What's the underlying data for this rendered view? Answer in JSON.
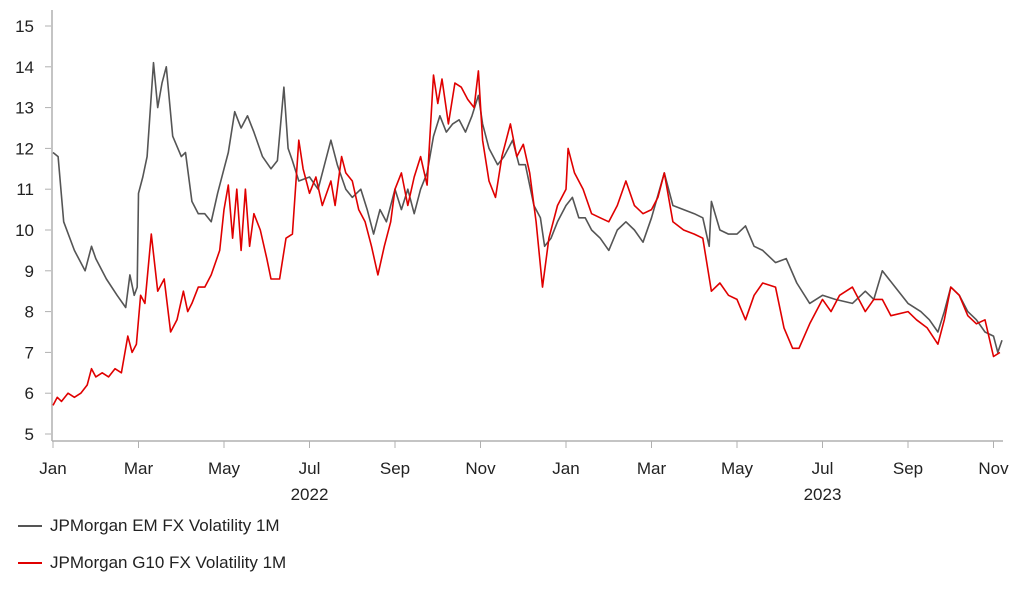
{
  "chart_data": {
    "type": "line",
    "title": "",
    "xlabel": "",
    "ylabel": "",
    "x_unit": "months since Jan 2022",
    "xlim": [
      0,
      22.3
    ],
    "ylim": [
      5,
      15
    ],
    "yticks": [
      5,
      6,
      7,
      8,
      9,
      10,
      11,
      12,
      13,
      14,
      15
    ],
    "xticks": [
      {
        "x": 0,
        "label": "Jan"
      },
      {
        "x": 2,
        "label": "Mar"
      },
      {
        "x": 4,
        "label": "May"
      },
      {
        "x": 6,
        "label": "Jul"
      },
      {
        "x": 8,
        "label": "Sep"
      },
      {
        "x": 10,
        "label": "Nov"
      },
      {
        "x": 12,
        "label": "Jan"
      },
      {
        "x": 14,
        "label": "Mar"
      },
      {
        "x": 16,
        "label": "May"
      },
      {
        "x": 18,
        "label": "Jul"
      },
      {
        "x": 20,
        "label": "Sep"
      },
      {
        "x": 22,
        "label": "Nov"
      }
    ],
    "year_labels": [
      {
        "x": 6,
        "label": "2022"
      },
      {
        "x": 18,
        "label": "2023"
      }
    ],
    "grid": false,
    "legend_position": "bottom-left",
    "series": [
      {
        "name": "JPMorgan EM FX Volatility 1M",
        "color": "#555555",
        "points": [
          [
            0,
            11.9
          ],
          [
            0.12,
            11.8
          ],
          [
            0.25,
            10.2
          ],
          [
            0.5,
            9.5
          ],
          [
            0.75,
            9.0
          ],
          [
            0.9,
            9.6
          ],
          [
            1.0,
            9.3
          ],
          [
            1.25,
            8.8
          ],
          [
            1.5,
            8.4
          ],
          [
            1.7,
            8.1
          ],
          [
            1.8,
            8.9
          ],
          [
            1.9,
            8.4
          ],
          [
            1.97,
            8.6
          ],
          [
            2.0,
            10.9
          ],
          [
            2.1,
            11.3
          ],
          [
            2.2,
            11.8
          ],
          [
            2.35,
            14.1
          ],
          [
            2.45,
            13.0
          ],
          [
            2.55,
            13.6
          ],
          [
            2.65,
            14.0
          ],
          [
            2.8,
            12.3
          ],
          [
            3.0,
            11.8
          ],
          [
            3.1,
            11.9
          ],
          [
            3.25,
            10.7
          ],
          [
            3.4,
            10.4
          ],
          [
            3.55,
            10.4
          ],
          [
            3.7,
            10.2
          ],
          [
            3.85,
            10.9
          ],
          [
            4.0,
            11.5
          ],
          [
            4.1,
            11.9
          ],
          [
            4.25,
            12.9
          ],
          [
            4.4,
            12.5
          ],
          [
            4.55,
            12.8
          ],
          [
            4.7,
            12.4
          ],
          [
            4.9,
            11.8
          ],
          [
            5.1,
            11.5
          ],
          [
            5.25,
            11.7
          ],
          [
            5.4,
            13.5
          ],
          [
            5.5,
            12.0
          ],
          [
            5.6,
            11.7
          ],
          [
            5.75,
            11.2
          ],
          [
            6.0,
            11.3
          ],
          [
            6.2,
            11.0
          ],
          [
            6.35,
            11.6
          ],
          [
            6.5,
            12.2
          ],
          [
            6.65,
            11.6
          ],
          [
            6.85,
            11.0
          ],
          [
            7.0,
            10.8
          ],
          [
            7.2,
            11.0
          ],
          [
            7.35,
            10.5
          ],
          [
            7.5,
            9.9
          ],
          [
            7.65,
            10.5
          ],
          [
            7.8,
            10.2
          ],
          [
            8.0,
            11.0
          ],
          [
            8.15,
            10.5
          ],
          [
            8.3,
            11.0
          ],
          [
            8.45,
            10.4
          ],
          [
            8.6,
            11.0
          ],
          [
            8.75,
            11.4
          ],
          [
            8.9,
            12.3
          ],
          [
            9.05,
            12.8
          ],
          [
            9.2,
            12.4
          ],
          [
            9.35,
            12.6
          ],
          [
            9.5,
            12.7
          ],
          [
            9.65,
            12.4
          ],
          [
            9.8,
            12.8
          ],
          [
            9.95,
            13.3
          ],
          [
            10.05,
            12.6
          ],
          [
            10.2,
            12.0
          ],
          [
            10.4,
            11.6
          ],
          [
            10.55,
            11.8
          ],
          [
            10.75,
            12.2
          ],
          [
            10.9,
            11.6
          ],
          [
            11.05,
            11.6
          ],
          [
            11.25,
            10.6
          ],
          [
            11.4,
            10.3
          ],
          [
            11.5,
            9.6
          ],
          [
            11.65,
            9.8
          ],
          [
            11.8,
            10.2
          ],
          [
            12.0,
            10.6
          ],
          [
            12.15,
            10.8
          ],
          [
            12.3,
            10.3
          ],
          [
            12.45,
            10.3
          ],
          [
            12.6,
            10.0
          ],
          [
            12.8,
            9.8
          ],
          [
            13.0,
            9.5
          ],
          [
            13.2,
            10.0
          ],
          [
            13.4,
            10.2
          ],
          [
            13.6,
            10.0
          ],
          [
            13.8,
            9.7
          ],
          [
            14.0,
            10.3
          ],
          [
            14.3,
            11.4
          ],
          [
            14.5,
            10.6
          ],
          [
            14.75,
            10.5
          ],
          [
            15.0,
            10.4
          ],
          [
            15.2,
            10.3
          ],
          [
            15.35,
            9.6
          ],
          [
            15.4,
            10.7
          ],
          [
            15.6,
            10.0
          ],
          [
            15.8,
            9.9
          ],
          [
            16.0,
            9.9
          ],
          [
            16.2,
            10.1
          ],
          [
            16.4,
            9.6
          ],
          [
            16.6,
            9.5
          ],
          [
            16.9,
            9.2
          ],
          [
            17.15,
            9.3
          ],
          [
            17.4,
            8.7
          ],
          [
            17.7,
            8.2
          ],
          [
            18.0,
            8.4
          ],
          [
            18.3,
            8.3
          ],
          [
            18.7,
            8.2
          ],
          [
            19.0,
            8.5
          ],
          [
            19.2,
            8.3
          ],
          [
            19.4,
            9.0
          ],
          [
            19.7,
            8.6
          ],
          [
            20.0,
            8.2
          ],
          [
            20.3,
            8.0
          ],
          [
            20.5,
            7.8
          ],
          [
            20.7,
            7.5
          ],
          [
            20.85,
            8.0
          ],
          [
            21.0,
            8.6
          ],
          [
            21.2,
            8.4
          ],
          [
            21.4,
            8.0
          ],
          [
            21.6,
            7.8
          ],
          [
            21.8,
            7.5
          ],
          [
            22.0,
            7.4
          ],
          [
            22.1,
            7.0
          ],
          [
            22.2,
            7.3
          ]
        ]
      },
      {
        "name": "JPMorgan G10 FX Volatility 1M",
        "color": "#e00000",
        "points": [
          [
            0,
            5.7
          ],
          [
            0.1,
            5.9
          ],
          [
            0.2,
            5.8
          ],
          [
            0.35,
            6.0
          ],
          [
            0.5,
            5.9
          ],
          [
            0.65,
            6.0
          ],
          [
            0.8,
            6.2
          ],
          [
            0.9,
            6.6
          ],
          [
            1.0,
            6.4
          ],
          [
            1.15,
            6.5
          ],
          [
            1.3,
            6.4
          ],
          [
            1.45,
            6.6
          ],
          [
            1.6,
            6.5
          ],
          [
            1.75,
            7.4
          ],
          [
            1.85,
            7.0
          ],
          [
            1.95,
            7.2
          ],
          [
            2.05,
            8.4
          ],
          [
            2.15,
            8.2
          ],
          [
            2.3,
            9.9
          ],
          [
            2.45,
            8.5
          ],
          [
            2.6,
            8.8
          ],
          [
            2.75,
            7.5
          ],
          [
            2.9,
            7.8
          ],
          [
            3.05,
            8.5
          ],
          [
            3.15,
            8.0
          ],
          [
            3.25,
            8.2
          ],
          [
            3.4,
            8.6
          ],
          [
            3.55,
            8.6
          ],
          [
            3.7,
            8.9
          ],
          [
            3.9,
            9.5
          ],
          [
            4.0,
            10.5
          ],
          [
            4.1,
            11.1
          ],
          [
            4.2,
            9.8
          ],
          [
            4.3,
            11.0
          ],
          [
            4.4,
            9.5
          ],
          [
            4.5,
            11.0
          ],
          [
            4.6,
            9.6
          ],
          [
            4.7,
            10.4
          ],
          [
            4.85,
            10.0
          ],
          [
            5.0,
            9.3
          ],
          [
            5.1,
            8.8
          ],
          [
            5.3,
            8.8
          ],
          [
            5.45,
            9.8
          ],
          [
            5.6,
            9.9
          ],
          [
            5.75,
            12.2
          ],
          [
            5.85,
            11.5
          ],
          [
            6.0,
            10.9
          ],
          [
            6.15,
            11.3
          ],
          [
            6.3,
            10.6
          ],
          [
            6.5,
            11.2
          ],
          [
            6.6,
            10.6
          ],
          [
            6.75,
            11.8
          ],
          [
            6.85,
            11.4
          ],
          [
            7.0,
            11.2
          ],
          [
            7.15,
            10.5
          ],
          [
            7.3,
            10.2
          ],
          [
            7.45,
            9.6
          ],
          [
            7.6,
            8.9
          ],
          [
            7.75,
            9.6
          ],
          [
            7.9,
            10.2
          ],
          [
            8.0,
            11.0
          ],
          [
            8.15,
            11.4
          ],
          [
            8.3,
            10.6
          ],
          [
            8.45,
            11.3
          ],
          [
            8.6,
            11.8
          ],
          [
            8.75,
            11.1
          ],
          [
            8.9,
            13.8
          ],
          [
            9.0,
            13.1
          ],
          [
            9.1,
            13.7
          ],
          [
            9.25,
            12.6
          ],
          [
            9.4,
            13.6
          ],
          [
            9.55,
            13.5
          ],
          [
            9.7,
            13.2
          ],
          [
            9.85,
            13.0
          ],
          [
            9.95,
            13.9
          ],
          [
            10.05,
            12.2
          ],
          [
            10.2,
            11.2
          ],
          [
            10.35,
            10.8
          ],
          [
            10.5,
            11.8
          ],
          [
            10.7,
            12.6
          ],
          [
            10.85,
            11.8
          ],
          [
            11.0,
            12.1
          ],
          [
            11.15,
            11.4
          ],
          [
            11.3,
            10.2
          ],
          [
            11.45,
            8.6
          ],
          [
            11.6,
            9.8
          ],
          [
            11.8,
            10.6
          ],
          [
            12.0,
            11.0
          ],
          [
            12.05,
            12.0
          ],
          [
            12.2,
            11.4
          ],
          [
            12.4,
            11.0
          ],
          [
            12.6,
            10.4
          ],
          [
            12.8,
            10.3
          ],
          [
            13.0,
            10.2
          ],
          [
            13.2,
            10.6
          ],
          [
            13.4,
            11.2
          ],
          [
            13.6,
            10.6
          ],
          [
            13.8,
            10.4
          ],
          [
            14.0,
            10.5
          ],
          [
            14.15,
            10.8
          ],
          [
            14.3,
            11.4
          ],
          [
            14.5,
            10.2
          ],
          [
            14.75,
            10.0
          ],
          [
            15.0,
            9.9
          ],
          [
            15.2,
            9.8
          ],
          [
            15.4,
            8.5
          ],
          [
            15.6,
            8.7
          ],
          [
            15.8,
            8.4
          ],
          [
            16.0,
            8.3
          ],
          [
            16.2,
            7.8
          ],
          [
            16.4,
            8.4
          ],
          [
            16.6,
            8.7
          ],
          [
            16.9,
            8.6
          ],
          [
            17.1,
            7.6
          ],
          [
            17.3,
            7.1
          ],
          [
            17.45,
            7.1
          ],
          [
            17.7,
            7.7
          ],
          [
            18.0,
            8.3
          ],
          [
            18.2,
            8.0
          ],
          [
            18.4,
            8.4
          ],
          [
            18.7,
            8.6
          ],
          [
            19.0,
            8.0
          ],
          [
            19.2,
            8.3
          ],
          [
            19.4,
            8.3
          ],
          [
            19.6,
            7.9
          ],
          [
            20.0,
            8.0
          ],
          [
            20.2,
            7.8
          ],
          [
            20.45,
            7.6
          ],
          [
            20.7,
            7.2
          ],
          [
            20.85,
            7.8
          ],
          [
            21.0,
            8.6
          ],
          [
            21.2,
            8.4
          ],
          [
            21.4,
            7.9
          ],
          [
            21.6,
            7.7
          ],
          [
            21.8,
            7.8
          ],
          [
            22.0,
            6.9
          ],
          [
            22.15,
            7.0
          ]
        ]
      }
    ]
  }
}
